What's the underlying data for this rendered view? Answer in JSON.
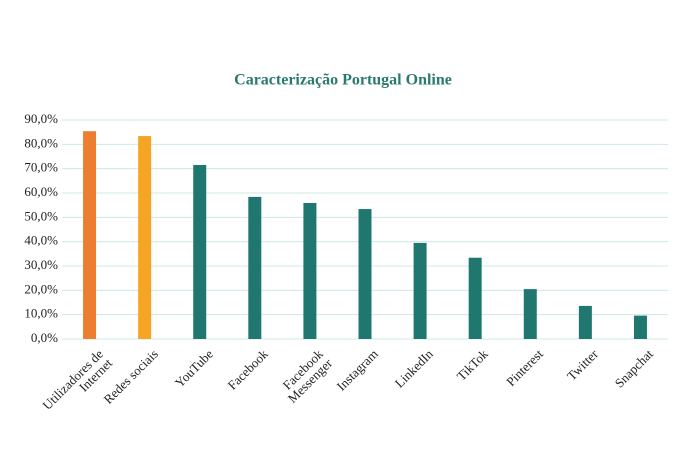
{
  "chart_data": {
    "type": "bar",
    "title": "Caracterização Portugal Online",
    "categories": [
      "Utilizadores de Internet",
      "Redes sociais",
      "YouTube",
      "Facebook",
      "Facebook Messenger",
      "Instagram",
      "LinkedIn",
      "TikTok",
      "Pinterest",
      "Twitter",
      "Snapchat"
    ],
    "values": [
      85.4,
      83.4,
      71.5,
      58.4,
      55.9,
      53.4,
      39.5,
      33.4,
      20.5,
      13.6,
      9.6
    ],
    "colors": [
      "#ed7d31",
      "#f5a523",
      "#1f7770",
      "#1f7770",
      "#1f7770",
      "#1f7770",
      "#1f7770",
      "#1f7770",
      "#1f7770",
      "#1f7770",
      "#1f7770"
    ],
    "ylim": [
      0,
      90
    ],
    "yticks": [
      {
        "value": 0,
        "label": "0,0%"
      },
      {
        "value": 10,
        "label": "10,0%"
      },
      {
        "value": 20,
        "label": "20,0%"
      },
      {
        "value": 30,
        "label": "30,0%"
      },
      {
        "value": 40,
        "label": "40,0%"
      },
      {
        "value": 50,
        "label": "50,0%"
      },
      {
        "value": 60,
        "label": "60,0%"
      },
      {
        "value": 70,
        "label": "70,0%"
      },
      {
        "value": 80,
        "label": "80,0%"
      },
      {
        "value": 90,
        "label": "90,0%"
      }
    ],
    "grid": true
  }
}
